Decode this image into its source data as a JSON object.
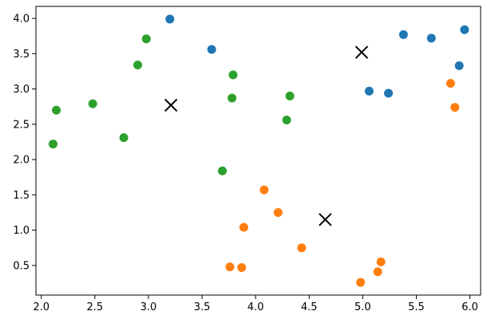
{
  "chart_data": {
    "type": "scatter",
    "title": "",
    "xlabel": "",
    "ylabel": "",
    "xlim": [
      1.95,
      6.1
    ],
    "ylim": [
      0.08,
      4.17
    ],
    "grid": false,
    "xticks": [
      "2.0",
      "2.5",
      "3.0",
      "3.5",
      "4.0",
      "4.5",
      "5.0",
      "5.5",
      "6.0"
    ],
    "yticks": [
      "0.5",
      "1.0",
      "1.5",
      "2.0",
      "2.5",
      "3.0",
      "3.5",
      "4.0"
    ],
    "series": [
      {
        "color": "#1f77b4",
        "points": [
          [
            3.2,
            3.99
          ],
          [
            3.59,
            3.56
          ],
          [
            5.06,
            2.97
          ],
          [
            5.24,
            2.94
          ],
          [
            5.38,
            3.77
          ],
          [
            5.64,
            3.72
          ],
          [
            5.9,
            3.33
          ],
          [
            5.95,
            3.84
          ]
        ]
      },
      {
        "color": "#ff7f0e",
        "points": [
          [
            3.76,
            0.48
          ],
          [
            3.87,
            0.47
          ],
          [
            3.89,
            1.04
          ],
          [
            4.08,
            1.57
          ],
          [
            4.21,
            1.25
          ],
          [
            4.43,
            0.75
          ],
          [
            4.98,
            0.26
          ],
          [
            5.14,
            0.41
          ],
          [
            5.17,
            0.55
          ],
          [
            5.82,
            3.08
          ],
          [
            5.86,
            2.74
          ]
        ]
      },
      {
        "color": "#2ca02c",
        "points": [
          [
            2.11,
            2.22
          ],
          [
            2.14,
            2.7
          ],
          [
            2.48,
            2.79
          ],
          [
            2.77,
            2.31
          ],
          [
            2.9,
            3.34
          ],
          [
            2.98,
            3.71
          ],
          [
            3.69,
            1.84
          ],
          [
            3.78,
            2.87
          ],
          [
            3.79,
            3.2
          ],
          [
            4.29,
            2.56
          ],
          [
            4.32,
            2.9
          ]
        ]
      }
    ],
    "centroids": {
      "marker": "x",
      "color": "#000000",
      "points": [
        [
          3.21,
          2.77
        ],
        [
          4.99,
          3.52
        ],
        [
          4.65,
          1.15
        ]
      ]
    }
  }
}
